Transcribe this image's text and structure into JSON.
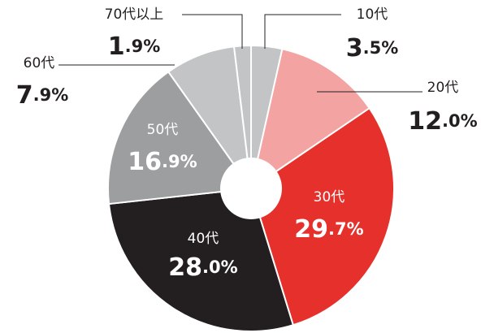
{
  "chart_data": {
    "type": "pie",
    "categories": [
      "10代",
      "20代",
      "30代",
      "40代",
      "50代",
      "60代",
      "70代以上"
    ],
    "values": [
      3.5,
      12.0,
      29.7,
      28.0,
      16.9,
      7.9,
      1.9
    ],
    "value_labels": [
      "3.5%",
      "12.0%",
      "29.7%",
      "28.0%",
      "16.9%",
      "7.9%",
      "1.9%"
    ],
    "colors": [
      "#c3c4c6",
      "#f4a3a3",
      "#e6302b",
      "#231f20",
      "#9d9ea0",
      "#c3c4c6",
      "#c3c4c6"
    ]
  }
}
